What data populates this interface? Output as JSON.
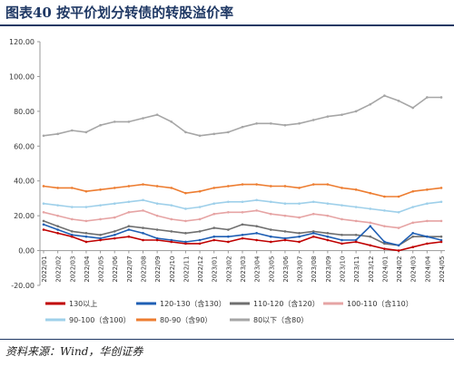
{
  "title": "图表40 按平价划分转债的转股溢价率",
  "source": "资料来源：Wind，华创证券",
  "chart_data": {
    "type": "line",
    "title": "图表40 按平价划分转债的转股溢价率",
    "xlabel": "",
    "ylabel": "",
    "ylim": [
      -20,
      120
    ],
    "yticks": [
      "-20.00",
      "0.00",
      "20.00",
      "40.00",
      "60.00",
      "80.00",
      "100.00",
      "120.00"
    ],
    "x": [
      "2022/01",
      "2022/02",
      "2022/03",
      "2022/04",
      "2022/05",
      "2022/06",
      "2022/07",
      "2022/08",
      "2022/09",
      "2022/10",
      "2022/11",
      "2022/12",
      "2023/01",
      "2023/02",
      "2023/03",
      "2023/04",
      "2023/05",
      "2023/06",
      "2023/07",
      "2023/08",
      "2023/09",
      "2023/10",
      "2023/11",
      "2023/12",
      "2024/01",
      "2024/02",
      "2024/03",
      "2024/04",
      "2024/05"
    ],
    "grid": false,
    "legend_position": "bottom",
    "series": [
      {
        "name": "130以上",
        "color": "#c00000",
        "values": [
          12,
          10,
          8,
          5,
          6,
          7,
          8,
          6,
          6,
          5,
          4,
          4,
          6,
          5,
          7,
          6,
          5,
          6,
          5,
          8,
          6,
          4,
          5,
          3,
          1,
          0,
          2,
          4,
          5
        ]
      },
      {
        "name": "120-130（含130）",
        "color": "#1f5fb4",
        "values": [
          15,
          12,
          9,
          8,
          7,
          9,
          12,
          10,
          7,
          6,
          5,
          6,
          8,
          8,
          9,
          10,
          8,
          7,
          8,
          10,
          8,
          6,
          6,
          14,
          5,
          3,
          10,
          8,
          6
        ]
      },
      {
        "name": "110-120（含120）",
        "color": "#6f6f6f",
        "values": [
          17,
          14,
          11,
          10,
          9,
          11,
          14,
          13,
          12,
          11,
          10,
          11,
          13,
          12,
          15,
          14,
          12,
          11,
          10,
          11,
          10,
          9,
          9,
          8,
          4,
          3,
          8,
          8,
          8
        ]
      },
      {
        "name": "100-110（含110）",
        "color": "#e6a4a4",
        "values": [
          22,
          20,
          18,
          17,
          18,
          19,
          22,
          23,
          20,
          18,
          17,
          18,
          21,
          22,
          22,
          23,
          21,
          20,
          19,
          21,
          20,
          18,
          17,
          16,
          14,
          13,
          16,
          17,
          17
        ]
      },
      {
        "name": "90-100（含100）",
        "color": "#9fd0ea",
        "values": [
          27,
          26,
          25,
          25,
          26,
          27,
          28,
          29,
          27,
          26,
          24,
          25,
          27,
          28,
          28,
          29,
          28,
          27,
          27,
          28,
          27,
          26,
          25,
          24,
          23,
          22,
          25,
          27,
          28
        ]
      },
      {
        "name": "80-90（含90）",
        "color": "#ed7d31",
        "values": [
          37,
          36,
          36,
          34,
          35,
          36,
          37,
          38,
          37,
          36,
          33,
          34,
          36,
          37,
          38,
          38,
          37,
          37,
          36,
          38,
          38,
          36,
          35,
          33,
          31,
          31,
          34,
          35,
          36
        ]
      },
      {
        "name": "80以下（含80）",
        "color": "#a6a6a6",
        "values": [
          66,
          67,
          69,
          68,
          72,
          74,
          74,
          76,
          78,
          74,
          68,
          66,
          67,
          68,
          71,
          73,
          73,
          72,
          73,
          75,
          77,
          78,
          80,
          84,
          89,
          86,
          82,
          88,
          88
        ]
      }
    ]
  }
}
